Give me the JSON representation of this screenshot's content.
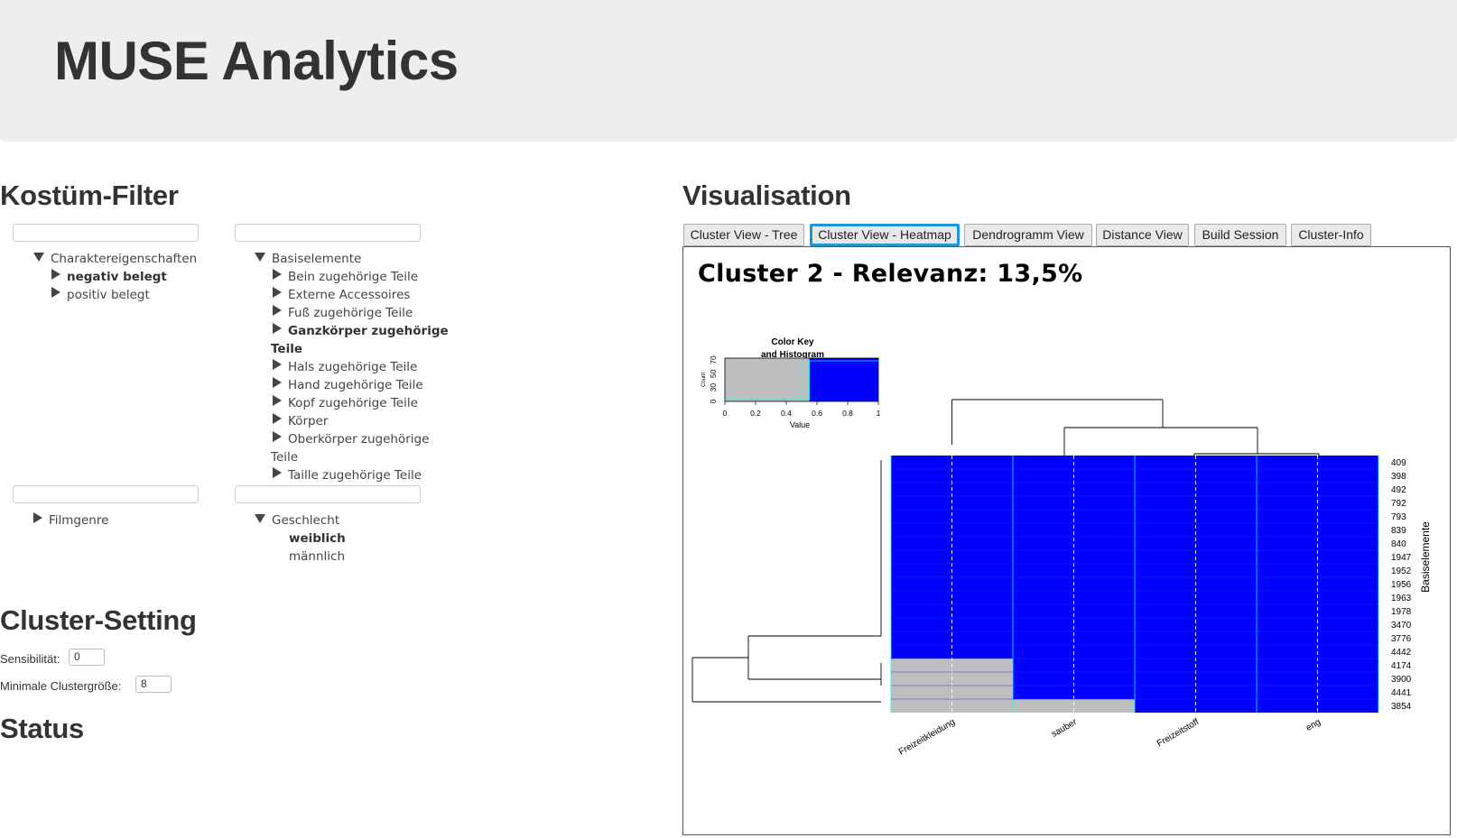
{
  "header": {
    "title": "MUSE Analytics"
  },
  "sections": {
    "filter": "Kostüm-Filter",
    "visualisation": "Visualisation",
    "cluster_setting": "Cluster-Setting",
    "status": "Status"
  },
  "tree_charakter": {
    "root": "Charaktereigenschaften",
    "children": [
      "negativ belegt",
      "positiv belegt"
    ]
  },
  "tree_basis": {
    "root": "Basiselemente",
    "children": [
      "Bein zugehörige Teile",
      "Externe Accessoires",
      "Fuß zugehörige Teile",
      "Ganzkörper zugehörige",
      "Teile",
      "Hals zugehörige Teile",
      "Hand zugehörige Teile",
      "Kopf zugehörige Teile",
      "Körper",
      "Oberkörper zugehörige",
      "Teile",
      "Taille zugehörige Teile"
    ]
  },
  "tree_film": {
    "root": "Filmgenre"
  },
  "tree_geschlecht": {
    "root": "Geschlecht",
    "children": [
      "weiblich",
      "männlich"
    ]
  },
  "settings": {
    "sensibilitaet_label": "Sensibilität:",
    "sensibilitaet_value": "0",
    "clustergroesse_label": "Minimale Clustergröße:",
    "clustergroesse_value": "8"
  },
  "tabs": [
    "Cluster View - Tree",
    "Cluster View - Heatmap",
    "Dendrogramm View",
    "Distance View",
    "Build Session",
    "Cluster-Info"
  ],
  "active_tab": "Cluster View - Heatmap",
  "colors": {
    "accent": "#1b98d8",
    "heat_high": "#0000ff",
    "heat_low": "#bebebe",
    "header_bg": "#eeeeee"
  },
  "chart_data": {
    "type": "heatmap",
    "title": "Cluster 2 - Relevanz: 13,5%",
    "columns": [
      "Freizeitkleidung",
      "sauber",
      "Freizeitstoff",
      "eng"
    ],
    "rows": [
      "409",
      "398",
      "492",
      "792",
      "793",
      "839",
      "840",
      "1947",
      "1952",
      "1956",
      "1963",
      "1978",
      "3470",
      "3776",
      "4442",
      "4174",
      "3900",
      "4441",
      "3854"
    ],
    "row_axis_label": "Basiselemente",
    "values": [
      [
        1,
        1,
        1,
        1
      ],
      [
        1,
        1,
        1,
        1
      ],
      [
        1,
        1,
        1,
        1
      ],
      [
        1,
        1,
        1,
        1
      ],
      [
        1,
        1,
        1,
        1
      ],
      [
        1,
        1,
        1,
        1
      ],
      [
        1,
        1,
        1,
        1
      ],
      [
        1,
        1,
        1,
        1
      ],
      [
        1,
        1,
        1,
        1
      ],
      [
        1,
        1,
        1,
        1
      ],
      [
        1,
        1,
        1,
        1
      ],
      [
        1,
        1,
        1,
        1
      ],
      [
        1,
        1,
        1,
        1
      ],
      [
        1,
        1,
        1,
        1
      ],
      [
        1,
        1,
        1,
        1
      ],
      [
        0,
        1,
        1,
        1
      ],
      [
        0,
        1,
        1,
        1
      ],
      [
        0,
        1,
        1,
        1
      ],
      [
        0,
        0,
        1,
        1
      ]
    ],
    "color_key": {
      "title_line1": "Color Key",
      "title_line2": "and Histogram",
      "x_label": "Value",
      "y_label": "Count",
      "x_ticks": [
        "0",
        "0.2",
        "0.4",
        "0.6",
        "0.8",
        "1"
      ],
      "y_ticks": [
        "0",
        "30",
        "50",
        "70"
      ]
    }
  }
}
